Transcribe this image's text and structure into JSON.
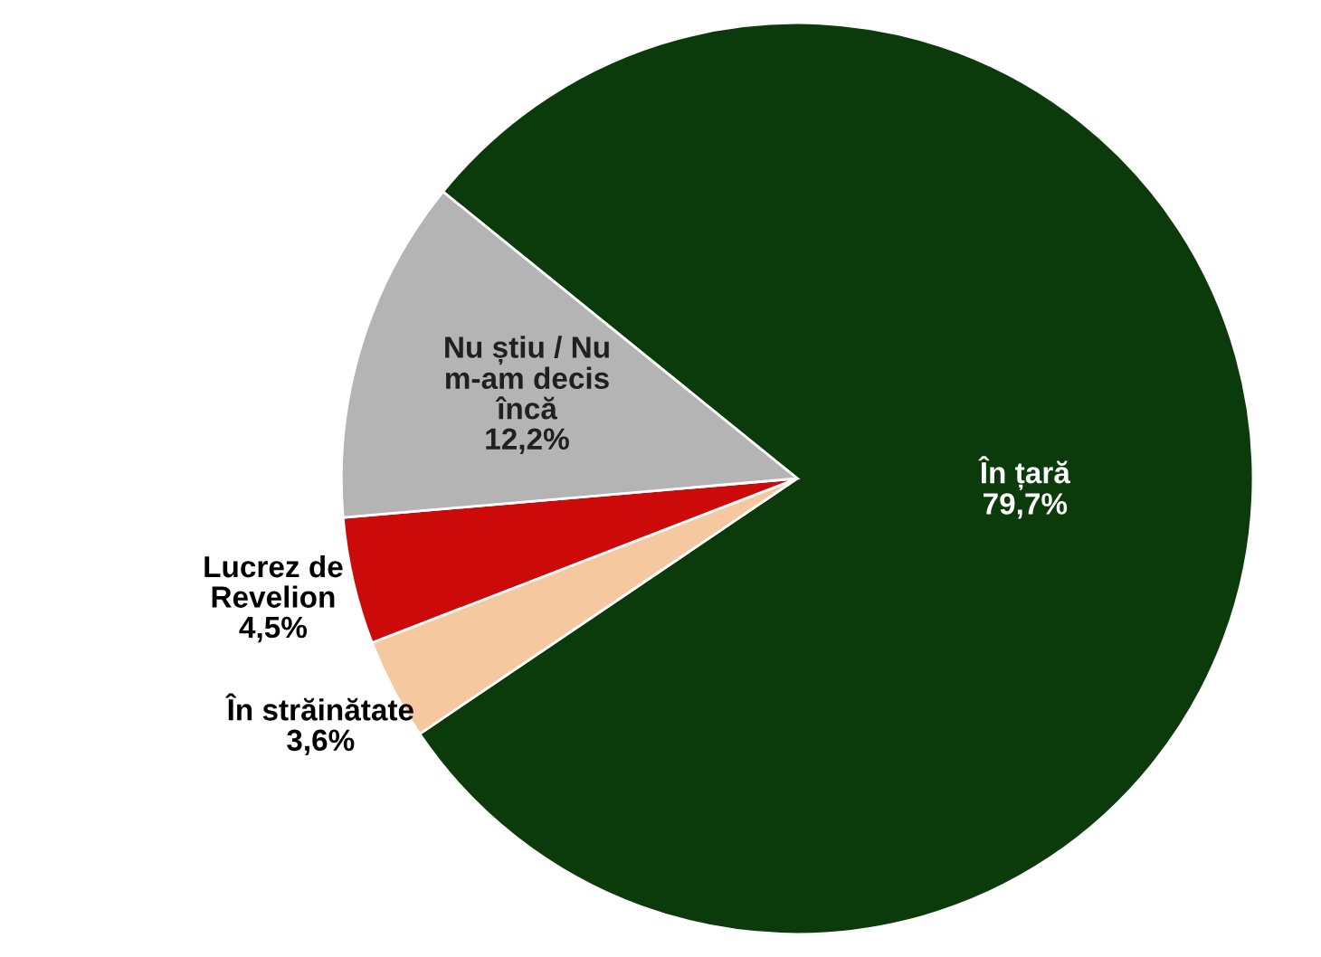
{
  "chart_data": {
    "type": "pie",
    "categories": [
      "În țară",
      "În străinătate",
      "Lucrez de\nRevelion",
      "Nu știu / Nu\nm-am decis\nîncă"
    ],
    "values": [
      79.7,
      3.6,
      4.5,
      12.2
    ],
    "value_labels": [
      "79,7%",
      "3,6%",
      "4,5%",
      "12,2%"
    ],
    "colors": [
      "#0b3a0b",
      "#f6c8a0",
      "#cc0a0a",
      "#b4b4b4"
    ]
  }
}
